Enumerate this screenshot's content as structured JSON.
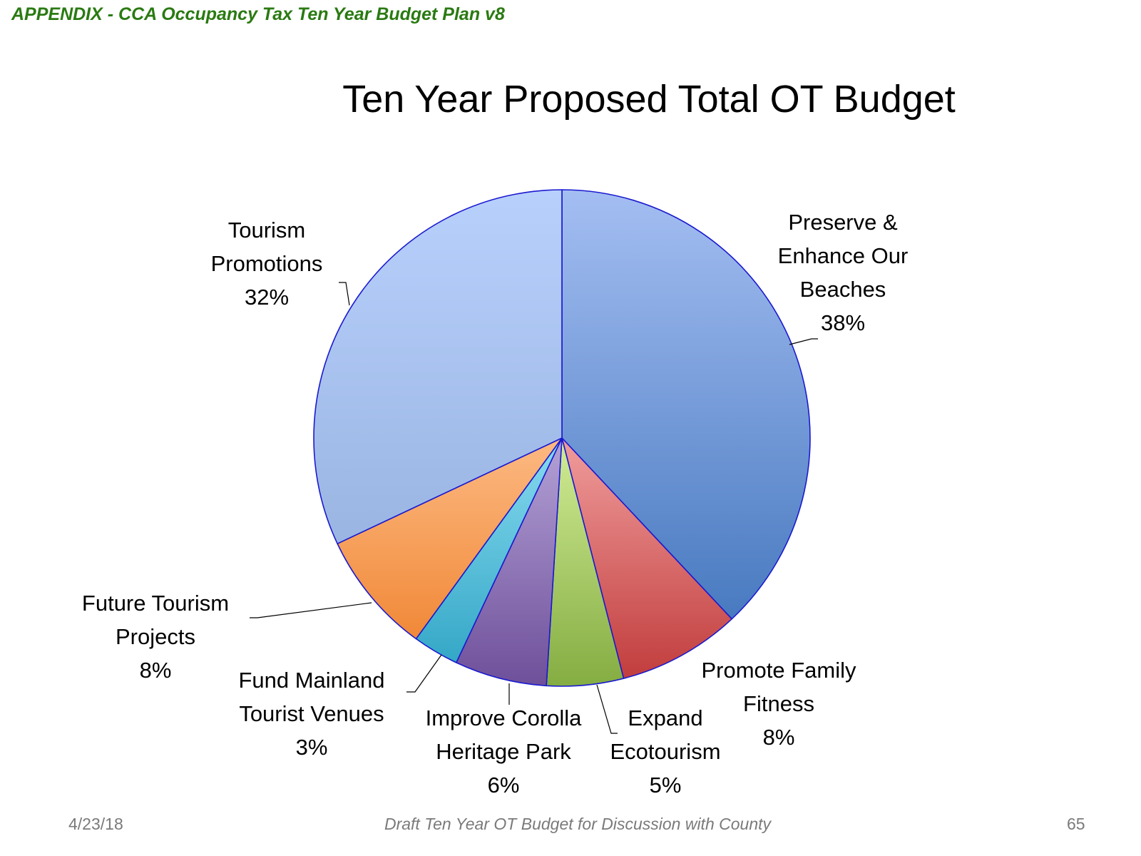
{
  "header": {
    "text": "APPENDIX - CCA Occupancy Tax Ten Year Budget Plan v8"
  },
  "chart_data": {
    "type": "pie",
    "title": "Ten Year Proposed Total OT Budget",
    "slices": [
      {
        "label": "Preserve & Enhance Our Beaches",
        "label_lines": [
          "Preserve &",
          "Enhance Our",
          "Beaches"
        ],
        "value": 38,
        "pct_label": "38%",
        "color_light": "#a4bef2",
        "color_dark": "#3a6fb8"
      },
      {
        "label": "Promote Family Fitness",
        "label_lines": [
          "Promote Family",
          "Fitness"
        ],
        "value": 8,
        "pct_label": "8%",
        "color_light": "#f09c9c",
        "color_dark": "#c03a3a"
      },
      {
        "label": "Expand Ecotourism",
        "label_lines": [
          "Expand",
          "Ecotourism"
        ],
        "value": 5,
        "pct_label": "5%",
        "color_light": "#d2ec96",
        "color_dark": "#84ad42"
      },
      {
        "label": "Improve Corolla Heritage Park",
        "label_lines": [
          "Improve Corolla",
          "Heritage Park"
        ],
        "value": 6,
        "pct_label": "6%",
        "color_light": "#b4a2d6",
        "color_dark": "#6e4f9a"
      },
      {
        "label": "Fund Mainland Tourist Venues",
        "label_lines": [
          "Fund Mainland",
          "Tourist Venues"
        ],
        "value": 3,
        "pct_label": "3%",
        "color_light": "#88daf0",
        "color_dark": "#2ba2c2"
      },
      {
        "label": "Future Tourism Projects",
        "label_lines": [
          "Future Tourism",
          "Projects"
        ],
        "value": 8,
        "pct_label": "8%",
        "color_light": "#fcb982",
        "color_dark": "#ee7d26"
      },
      {
        "label": "Tourism Promotions",
        "label_lines": [
          "Tourism",
          "Promotions"
        ],
        "value": 32,
        "pct_label": "32%",
        "color_light": "#b8d0fc",
        "color_dark": "#8eaad8"
      }
    ],
    "start_angle_deg": 0,
    "direction": "clockwise",
    "border_color": "#1a1ad0",
    "legend": "none"
  },
  "footer": {
    "date": "4/23/18",
    "center": "Draft Ten Year OT Budget for Discussion with County",
    "page": "65"
  }
}
